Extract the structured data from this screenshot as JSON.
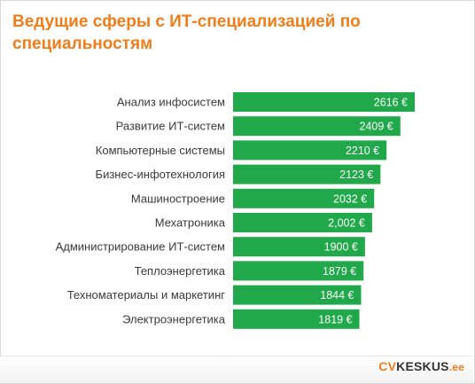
{
  "chart_data": {
    "type": "bar",
    "orientation": "horizontal",
    "title": "Ведущие сферы с ИТ-специализацией по специальностям",
    "categories": [
      "Анализ инфосистем",
      "Развитие ИТ-систем",
      "Компьютерные системы",
      "Бизнес-инфотехнология",
      "Машиностроение",
      "Мехатроника",
      "Администрирование ИТ-систем",
      "Теплоэнергетика",
      "Техноматериалы и маркетинг",
      "Электроэнергетика"
    ],
    "values": [
      2616,
      2409,
      2210,
      2123,
      2032,
      2002,
      1900,
      1879,
      1844,
      1819
    ],
    "value_labels": [
      "2616 €",
      "2409 €",
      "2210 €",
      "2123 €",
      "2032 €",
      "2,002 €",
      "1900 €",
      "1879 €",
      "1844 €",
      "1819 €"
    ],
    "bar_color": "#21a84a",
    "title_color": "#f07d1a",
    "grid": false,
    "legend": "none"
  },
  "brand": {
    "cv": "CV",
    "keskus": "KESKUS",
    "ee": ".ee"
  }
}
